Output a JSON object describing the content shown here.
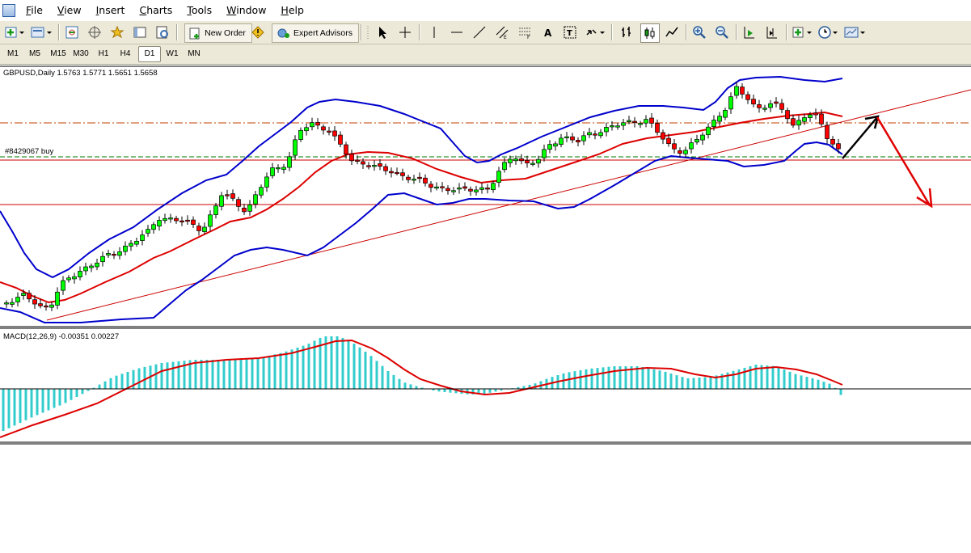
{
  "menu": [
    "File",
    "View",
    "Insert",
    "Charts",
    "Tools",
    "Window",
    "Help"
  ],
  "menu_underline": [
    "F",
    "V",
    "I",
    "C",
    "T",
    "W",
    "H"
  ],
  "toolbar": {
    "new_order_label": "New Order",
    "expert_advisors_label": "Expert Advisors"
  },
  "timeframes": [
    "M1",
    "M5",
    "M15",
    "M30",
    "H1",
    "H4",
    "D1",
    "W1",
    "MN"
  ],
  "active_timeframe": "D1",
  "chart": {
    "symbol_line": "GBPUSD,Daily  1.5763 1.5771 1.5651 1.5658",
    "order_label": "#8429067 buy",
    "macd_line": "MACD(12,26,9) -0.00351 0.00227"
  },
  "colors": {
    "bull": "#00ff00",
    "bear": "#ff0000",
    "bands": "#0000cc",
    "ma": "#dd0000",
    "macd_hist": "#33cccc",
    "signal": "#dd0000",
    "level_line": "#cc0000",
    "forecast_up": "#000000",
    "forecast_down": "#e00000"
  }
}
